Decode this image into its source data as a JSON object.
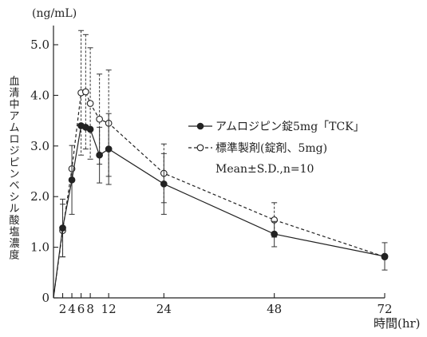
{
  "chart_data": {
    "type": "line",
    "xlabel": "時間(hr)",
    "ylabel": "血清中アムロジピンベシル酸塩濃度",
    "y_unit": "(ng/mL)",
    "xlim": [
      0,
      72
    ],
    "ylim": [
      0,
      5.0
    ],
    "x_ticks": [
      2,
      4,
      6,
      8,
      12,
      24,
      48,
      72
    ],
    "x_tick_labels": [
      "2",
      "4",
      "6",
      "8",
      "12",
      "24",
      "48",
      "72"
    ],
    "y_ticks": [
      0,
      1.0,
      2.0,
      3.0,
      4.0,
      5.0
    ],
    "y_tick_labels": [
      "0",
      "1.0",
      "2.0",
      "3.0",
      "4.0",
      "5.0"
    ],
    "grid": false,
    "legend_position": "right-middle",
    "legend_note": "Mean±S.D.,n=10",
    "series": [
      {
        "name": "アムロジピン錠5mg「TCK」",
        "line_style": "solid",
        "marker": "filled-circle",
        "x": [
          0,
          2,
          4,
          6,
          7,
          8,
          10,
          12,
          24,
          48,
          72
        ],
        "y": [
          0,
          1.38,
          2.33,
          3.4,
          3.37,
          3.33,
          2.82,
          2.94,
          2.25,
          1.26,
          0.82
        ],
        "sd": [
          0,
          0.57,
          0.68,
          0.0,
          0.0,
          0.0,
          0.55,
          0.7,
          0.6,
          0.25,
          0.27
        ]
      },
      {
        "name": "標準製剤(錠剤、5mg)",
        "line_style": "dashed",
        "marker": "open-circle",
        "x": [
          0,
          2,
          4,
          6,
          7,
          8,
          10,
          12,
          24,
          48,
          72
        ],
        "y": [
          0,
          1.33,
          2.55,
          4.05,
          4.07,
          3.84,
          3.53,
          3.45,
          2.46,
          1.54,
          0.81
        ],
        "sd": [
          0,
          0.52,
          0.0,
          1.23,
          1.13,
          1.1,
          0.89,
          1.05,
          0.58,
          0.34,
          0.0
        ]
      }
    ]
  }
}
